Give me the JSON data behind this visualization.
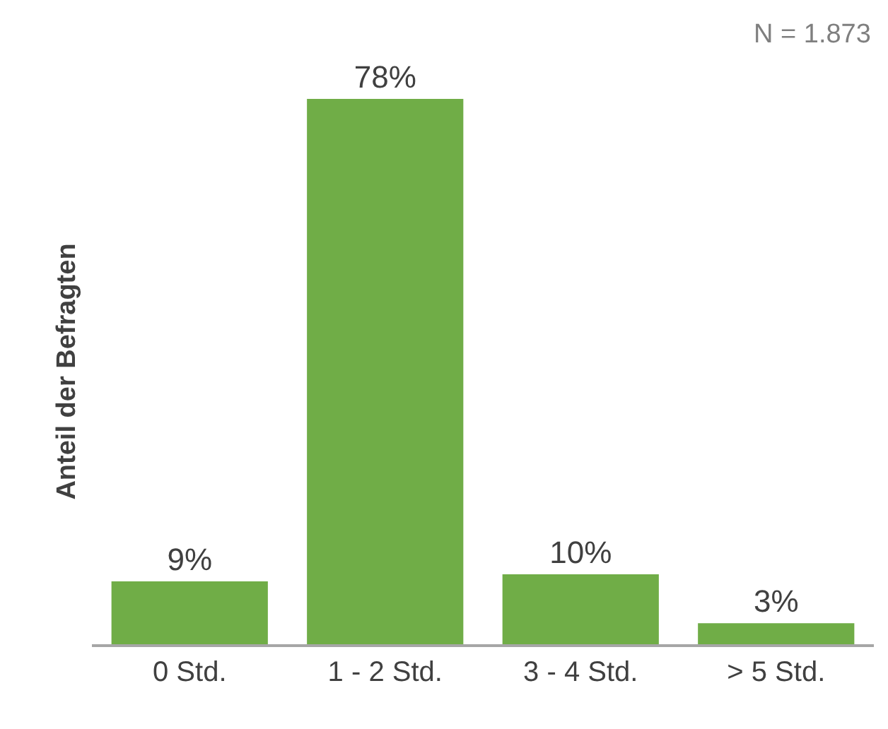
{
  "chart_data": {
    "type": "bar",
    "ylabel": "Anteil der Befragten",
    "categories": [
      "0 Std.",
      "1 - 2 Std.",
      "3 - 4 Std.",
      "> 5 Std."
    ],
    "values": [
      9,
      78,
      10,
      3
    ],
    "value_labels": [
      "9%",
      "78%",
      "10%",
      "3%"
    ],
    "color": "#70ad47",
    "annotations": [
      "N = 1.873"
    ],
    "legend": false
  }
}
